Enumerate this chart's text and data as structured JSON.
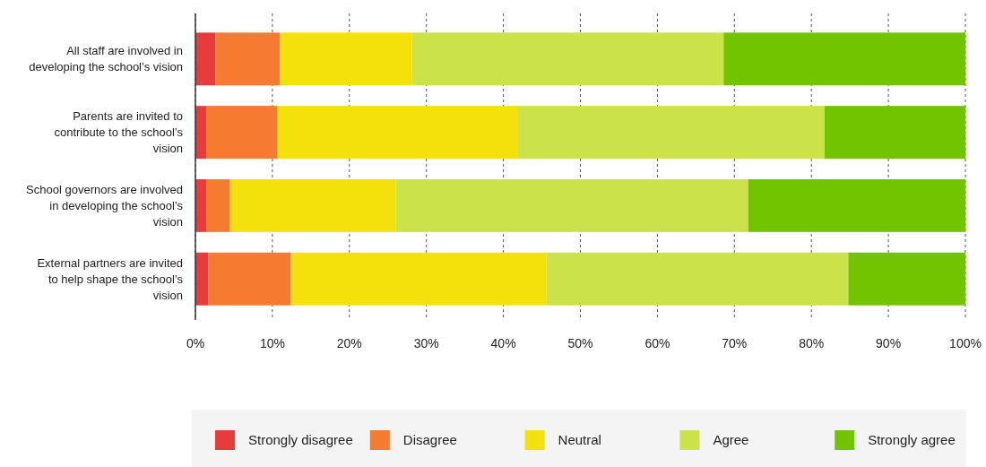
{
  "chart_data": {
    "type": "bar",
    "orientation": "horizontal",
    "stacked": true,
    "categories": [
      "All staff are involved in developing the school’s vision",
      "Parents are invited to contribute to the school’s vision",
      "School governors are involved in developing the school’s vision",
      "External partners are invited to help shape the school’s vision"
    ],
    "series": [
      {
        "name": "Strongly disagree",
        "color": "#e83c3c",
        "values": [
          2.6,
          1.4,
          1.4,
          1.7
        ]
      },
      {
        "name": "Disagree",
        "color": "#f47b30",
        "values": [
          8.4,
          9.2,
          3.1,
          10.7
        ]
      },
      {
        "name": "Neutral",
        "color": "#f4e10c",
        "values": [
          17.1,
          31.2,
          21.5,
          33.2
        ]
      },
      {
        "name": "Agree",
        "color": "#cbe24a",
        "values": [
          40.5,
          39.9,
          45.8,
          39.2
        ]
      },
      {
        "name": "Strongly agree",
        "color": "#72c400",
        "values": [
          31.4,
          18.3,
          28.2,
          15.2
        ]
      }
    ],
    "xlim": [
      0,
      100
    ],
    "xticks": [
      {
        "value": 0,
        "label": "0%"
      },
      {
        "value": 10,
        "label": "10%"
      },
      {
        "value": 20,
        "label": "20%"
      },
      {
        "value": 30,
        "label": "30%"
      },
      {
        "value": 40,
        "label": "40%"
      },
      {
        "value": 50,
        "label": "50%"
      },
      {
        "value": 60,
        "label": "60%"
      },
      {
        "value": 70,
        "label": "70%"
      },
      {
        "value": 80,
        "label": "80%"
      },
      {
        "value": 90,
        "label": "90%"
      },
      {
        "value": 100,
        "label": "100%"
      }
    ],
    "grid": "x",
    "legend": "bottom"
  }
}
